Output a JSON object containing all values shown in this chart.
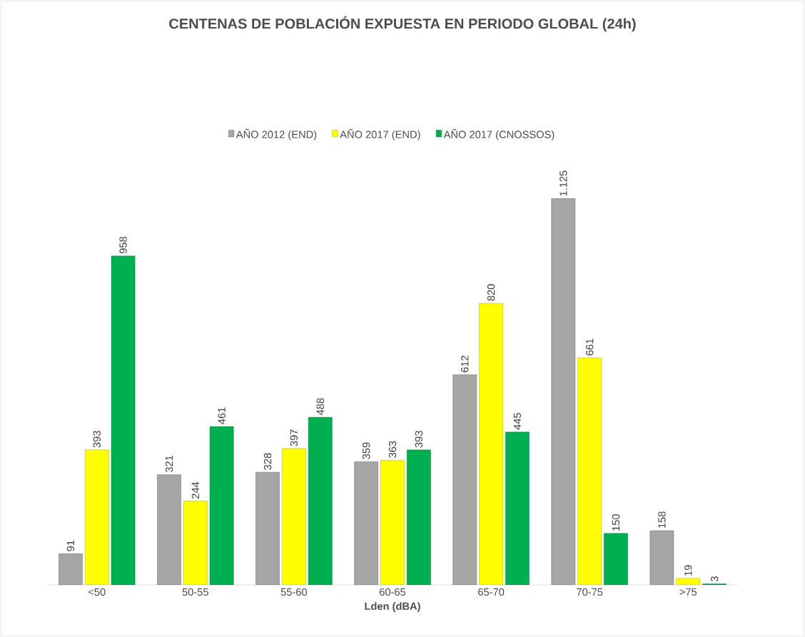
{
  "chart_data": {
    "type": "bar",
    "title": "CENTENAS DE POBLACIÓN EXPUESTA EN PERIODO GLOBAL (24h)",
    "xlabel": "Lden (dBA)",
    "categories": [
      "<50",
      "50-55",
      "55-60",
      "60-65",
      "65-70",
      "70-75",
      ">75"
    ],
    "series": [
      {
        "name": "AÑO 2012 (END)",
        "color": "#a5a5a5",
        "values": [
          91,
          321,
          328,
          359,
          612,
          1125,
          158
        ],
        "value_labels": [
          "91",
          "321",
          "328",
          "359",
          "612",
          "1.125",
          "158"
        ]
      },
      {
        "name": "AÑO 2017 (END)",
        "color": "#ffff00",
        "values": [
          393,
          244,
          397,
          363,
          820,
          661,
          19
        ],
        "value_labels": [
          "393",
          "244",
          "397",
          "363",
          "820",
          "661",
          "19"
        ]
      },
      {
        "name": "AÑO 2017 (CNOSSOS)",
        "color": "#00b050",
        "values": [
          958,
          461,
          488,
          393,
          445,
          150,
          3
        ],
        "value_labels": [
          "958",
          "461",
          "488",
          "393",
          "445",
          "150",
          "3"
        ]
      }
    ],
    "legend": "top",
    "tick_labels": "x"
  }
}
